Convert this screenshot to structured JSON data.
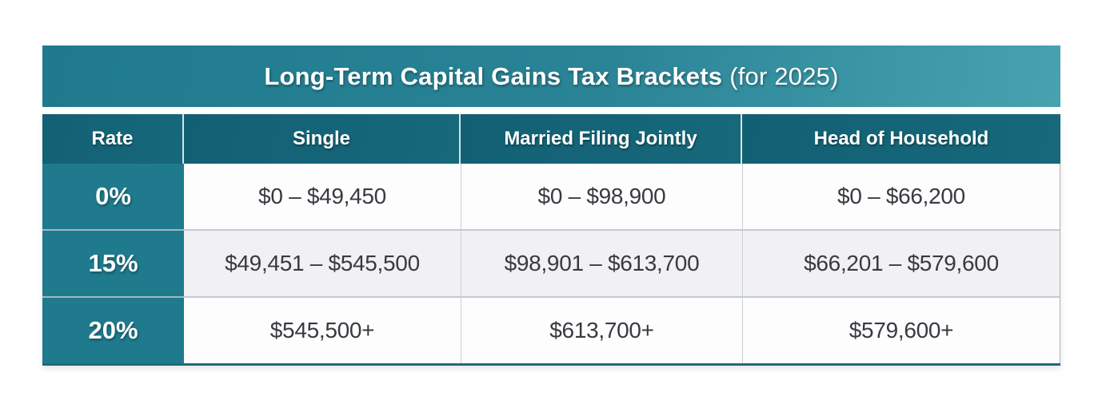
{
  "chart_data": {
    "type": "table",
    "title_bold": "Long-Term Capital Gains Tax Brackets",
    "title_suffix": "(for 2025)",
    "title_full": "Long-Term Capital Gains Tax Brackets (for 2025)",
    "columns": [
      "Rate",
      "Single",
      "Married Filing Jointly",
      "Head of Household"
    ],
    "rows": [
      [
        "0%",
        "$0 – $49,450",
        "$0 – $98,900",
        "$0 – $66,200"
      ],
      [
        "15%",
        "$49,451 – $545,500",
        "$98,901 – $613,700",
        "$66,201 – $579,600"
      ],
      [
        "20%",
        "$545,500+",
        "$613,700+",
        "$579,600+"
      ]
    ],
    "layout": {
      "legend": "none",
      "grid": "table-borders"
    }
  },
  "colors": {
    "title_gradient_left": "#1f7a8e",
    "title_gradient_right": "#47a2b0",
    "header_bg": "#136174",
    "rate_column_bg": "#1f7a8d",
    "row_white_bg": "#fdfdfe",
    "row_alt_bg": "#f1f1f4",
    "data_text": "#393940",
    "header_text": "#ffffff",
    "bottom_border": "#20697b"
  }
}
